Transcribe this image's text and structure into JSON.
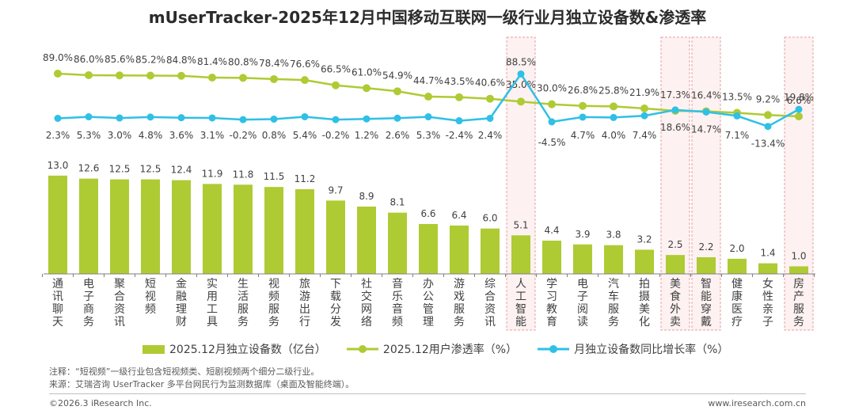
{
  "title": "mUserTracker-2025年12月中国移动互联网一级行业月独立设备数&渗透率",
  "chart_data": {
    "type": "bar",
    "categories": [
      "通讯聊天",
      "电子商务",
      "聚合资讯",
      "短视频",
      "金融理财",
      "实用工具",
      "生活服务",
      "视频服务",
      "旅游出行",
      "下载分发",
      "社交网络",
      "音乐音频",
      "办公管理",
      "游戏服务",
      "综合资讯",
      "人工智能",
      "学习教育",
      "电子阅读",
      "汽车服务",
      "拍摄美化",
      "美食外卖",
      "智能穿戴",
      "健康医疗",
      "女性亲子",
      "房产服务"
    ],
    "series": [
      {
        "name": "2025.12月独立设备数（亿台）",
        "type": "bar",
        "color": "#aecb33",
        "values": [
          13.0,
          12.6,
          12.5,
          12.5,
          12.4,
          11.9,
          11.8,
          11.5,
          11.2,
          9.7,
          8.9,
          8.1,
          6.6,
          6.4,
          6.0,
          5.1,
          4.4,
          3.9,
          3.8,
          3.2,
          2.5,
          2.2,
          2.0,
          1.4,
          1.0
        ],
        "labels": [
          "13.0",
          "12.6",
          "12.5",
          "12.5",
          "12.4",
          "11.9",
          "11.8",
          "11.5",
          "11.2",
          "9.7",
          "8.9",
          "8.1",
          "6.6",
          "6.4",
          "6.0",
          "5.1",
          "4.4",
          "3.9",
          "3.8",
          "3.2",
          "2.5",
          "2.2",
          "2.0",
          "1.4",
          "1.0"
        ]
      },
      {
        "name": "2025.12用户渗透率（%）",
        "type": "line",
        "color": "#aecb33",
        "values": [
          89.0,
          86.0,
          85.6,
          85.2,
          84.8,
          81.4,
          80.8,
          78.4,
          76.6,
          66.5,
          61.0,
          54.9,
          44.7,
          43.5,
          40.6,
          35.0,
          30.0,
          26.8,
          25.8,
          21.9,
          17.3,
          16.4,
          13.5,
          9.2,
          6.6
        ],
        "labels": [
          "89.0%",
          "86.0%",
          "85.6%",
          "85.2%",
          "84.8%",
          "81.4%",
          "80.8%",
          "78.4%",
          "76.6%",
          "66.5%",
          "61.0%",
          "54.9%",
          "44.7%",
          "43.5%",
          "40.6%",
          "35.0%",
          "30.0%",
          "26.8%",
          "25.8%",
          "21.9%",
          "17.3%",
          "16.4%",
          "13.5%",
          "9.2%",
          "6.6%"
        ]
      },
      {
        "name": "月独立设备数同比增长率（%）",
        "type": "line",
        "color": "#2fc0e6",
        "values": [
          2.3,
          5.3,
          3.0,
          4.8,
          3.6,
          3.1,
          -0.2,
          0.8,
          5.4,
          -0.2,
          1.2,
          2.6,
          5.3,
          -2.4,
          2.4,
          88.5,
          -4.5,
          4.7,
          4.0,
          7.4,
          18.6,
          14.7,
          7.1,
          -13.4,
          19.8
        ],
        "labels": [
          "2.3%",
          "5.3%",
          "3.0%",
          "4.8%",
          "3.6%",
          "3.1%",
          "-0.2%",
          "0.8%",
          "5.4%",
          "-0.2%",
          "1.2%",
          "2.6%",
          "5.3%",
          "-2.4%",
          "2.4%",
          "88.5%",
          "-4.5%",
          "4.7%",
          "4.0%",
          "7.4%",
          "18.6%",
          "14.7%",
          "7.1%",
          "-13.4%",
          "19.8%"
        ]
      }
    ],
    "highlighted_categories": [
      "人工智能",
      "美食外卖",
      "智能穿戴",
      "房产服务"
    ],
    "legend_position": "bottom"
  },
  "notes": {
    "note": "注释：“短视频”一级行业包含短视频类、短剧视频两个细分二级行业。",
    "source": "来源：艾瑞咨询 UserTracker 多平台网民行为监测数据库（桌面及智能终端）。"
  },
  "footer": {
    "copyright": "©2026.3 iResearch Inc.",
    "website": "www.iresearch.com.cn"
  },
  "colors": {
    "bar": "#aecb33",
    "penetration_line": "#aecb33",
    "growth_line": "#2fc0e6",
    "highlight_border": "#e8a0a0",
    "highlight_fill": "#fdf1f1"
  }
}
